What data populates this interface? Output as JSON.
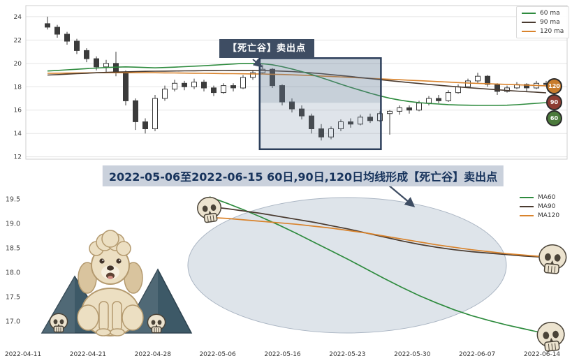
{
  "annotations": {
    "sell_point_label": "【死亡谷】卖出点",
    "banner": "2022-05-06至2022-06-15 60日,90日,120日均线形成【死亡谷】卖出点"
  },
  "colors": {
    "annotation": "#3e4d63",
    "banner_bg": "#cad1dc",
    "banner_text": "#17335c",
    "box_stroke": "#2c3e5a",
    "ellipse_fill": "#c3cdd9",
    "ellipse_stroke": "#aab5c3",
    "grid": "#e5e5e5",
    "up_candle": "#ffffff",
    "down_candle": "#3b3b3b",
    "skull_bone": "#ece3cf",
    "skull_dark": "#4a4338",
    "mountain": "#3d5967",
    "mountain_edge": "#2e4350",
    "dog_body": "#ecdfc2",
    "dog_shade": "#d9c49e",
    "dog_outline": "#b49a6f",
    "dog_dark": "#42342a",
    "dog_tongue": "#d08b80"
  },
  "chart_data": [
    {
      "type": "candlestick",
      "title": "",
      "ylim": [
        11.8,
        24.95
      ],
      "yticks": [
        12,
        14,
        16,
        18,
        20,
        22,
        24
      ],
      "xticklabels": [
        "2022-04-11",
        "2022-04-21",
        "2022-04-28",
        "2022-05-06",
        "2022-05-16",
        "2022-05-23",
        "2022-05-30",
        "2022-06-07",
        "2022-06-14"
      ],
      "candles": [
        [
          23.4,
          24.0,
          22.9,
          23.1
        ],
        [
          23.1,
          23.3,
          22.2,
          22.5
        ],
        [
          22.5,
          22.7,
          21.6,
          21.9
        ],
        [
          21.9,
          22.1,
          20.8,
          21.1
        ],
        [
          21.1,
          21.3,
          20.1,
          20.4
        ],
        [
          20.4,
          20.6,
          19.4,
          19.7
        ],
        [
          19.7,
          20.3,
          19.2,
          20.0
        ],
        [
          20.0,
          21.0,
          18.9,
          19.2
        ],
        [
          19.2,
          19.4,
          16.4,
          16.8
        ],
        [
          16.8,
          17.0,
          14.3,
          15.0
        ],
        [
          15.0,
          15.3,
          14.0,
          14.4
        ],
        [
          14.4,
          17.3,
          14.2,
          17.0
        ],
        [
          17.0,
          18.1,
          16.8,
          17.8
        ],
        [
          17.8,
          18.6,
          17.6,
          18.3
        ],
        [
          18.3,
          18.5,
          17.7,
          18.0
        ],
        [
          18.0,
          18.7,
          17.8,
          18.4
        ],
        [
          18.4,
          18.6,
          17.6,
          17.9
        ],
        [
          17.9,
          18.1,
          17.2,
          17.5
        ],
        [
          17.5,
          18.3,
          17.4,
          18.1
        ],
        [
          18.1,
          18.3,
          17.6,
          17.9
        ],
        [
          17.9,
          19.0,
          17.8,
          18.8
        ],
        [
          18.8,
          19.4,
          18.6,
          19.2
        ],
        [
          19.2,
          19.9,
          19.1,
          19.5
        ],
        [
          19.5,
          19.6,
          17.9,
          18.1
        ],
        [
          18.1,
          18.2,
          16.4,
          16.7
        ],
        [
          16.7,
          17.0,
          15.8,
          16.1
        ],
        [
          16.1,
          16.4,
          15.2,
          15.5
        ],
        [
          15.5,
          15.7,
          14.0,
          14.4
        ],
        [
          14.4,
          14.8,
          13.4,
          13.7
        ],
        [
          13.7,
          14.6,
          13.5,
          14.4
        ],
        [
          14.4,
          15.2,
          14.2,
          15.0
        ],
        [
          15.0,
          15.3,
          14.5,
          14.8
        ],
        [
          14.8,
          15.6,
          14.7,
          15.4
        ],
        [
          15.4,
          15.7,
          14.9,
          15.1
        ],
        [
          15.1,
          15.9,
          15.0,
          15.7
        ],
        [
          15.7,
          16.0,
          13.9,
          15.9
        ],
        [
          15.9,
          16.4,
          15.6,
          16.2
        ],
        [
          16.2,
          16.4,
          15.7,
          16.0
        ],
        [
          16.0,
          16.8,
          15.9,
          16.6
        ],
        [
          16.6,
          17.2,
          16.4,
          17.0
        ],
        [
          17.0,
          17.3,
          16.6,
          16.8
        ],
        [
          16.8,
          17.7,
          16.7,
          17.5
        ],
        [
          17.5,
          18.2,
          17.4,
          18.0
        ],
        [
          18.0,
          18.7,
          17.9,
          18.5
        ],
        [
          18.5,
          19.2,
          18.3,
          18.9
        ],
        [
          18.9,
          19.0,
          18.0,
          18.2
        ],
        [
          18.2,
          18.3,
          17.3,
          17.6
        ],
        [
          17.6,
          18.1,
          17.5,
          17.9
        ],
        [
          17.9,
          18.4,
          17.8,
          18.2
        ],
        [
          18.2,
          18.3,
          17.6,
          17.9
        ],
        [
          17.9,
          18.5,
          17.8,
          18.3
        ],
        [
          18.3,
          18.5,
          18.0,
          18.2
        ]
      ],
      "series": [
        {
          "name": "60 ma",
          "color": "#2e8b3e",
          "values": [
            19.35,
            19.4,
            19.45,
            19.5,
            19.55,
            19.6,
            19.65,
            19.68,
            19.7,
            19.68,
            19.65,
            19.62,
            19.65,
            19.68,
            19.72,
            19.76,
            19.8,
            19.85,
            19.9,
            19.95,
            20.0,
            20.0,
            19.97,
            19.88,
            19.72,
            19.52,
            19.3,
            19.05,
            18.78,
            18.5,
            18.22,
            17.95,
            17.7,
            17.45,
            17.22,
            17.02,
            16.86,
            16.74,
            16.64,
            16.57,
            16.52,
            16.47,
            16.44,
            16.42,
            16.4,
            16.4,
            16.4,
            16.42,
            16.46,
            16.52,
            16.58,
            16.64
          ]
        },
        {
          "name": "90 ma",
          "color": "#4a3b30",
          "values": [
            19.0,
            19.04,
            19.08,
            19.12,
            19.16,
            19.2,
            19.23,
            19.26,
            19.28,
            19.3,
            19.32,
            19.33,
            19.34,
            19.35,
            19.36,
            19.37,
            19.38,
            19.38,
            19.39,
            19.4,
            19.4,
            19.4,
            19.39,
            19.37,
            19.34,
            19.3,
            19.25,
            19.19,
            19.12,
            19.04,
            18.96,
            18.88,
            18.79,
            18.7,
            18.61,
            18.52,
            18.44,
            18.36,
            18.28,
            18.2,
            18.13,
            18.06,
            17.99,
            17.92,
            17.86,
            17.8,
            17.74,
            17.68,
            17.63,
            17.58,
            17.53,
            17.48
          ]
        },
        {
          "name": "120 ma",
          "color": "#d9832c",
          "values": [
            19.15,
            19.16,
            19.17,
            19.18,
            19.19,
            19.2,
            19.2,
            19.2,
            19.2,
            19.2,
            19.2,
            19.2,
            19.19,
            19.18,
            19.17,
            19.16,
            19.15,
            19.14,
            19.13,
            19.12,
            19.11,
            19.1,
            19.09,
            19.07,
            19.05,
            19.02,
            18.99,
            18.96,
            18.92,
            18.88,
            18.84,
            18.8,
            18.76,
            18.72,
            18.68,
            18.64,
            18.6,
            18.56,
            18.52,
            18.48,
            18.44,
            18.4,
            18.36,
            18.32,
            18.29,
            18.26,
            18.23,
            18.2,
            18.17,
            18.14,
            18.11,
            18.08
          ]
        }
      ],
      "highlight_box": {
        "idx_from": 21.7,
        "idx_to": 34.1,
        "y_from": 12.65,
        "y_to": 20.45
      },
      "end_badges": [
        {
          "label": "120",
          "color": "#c87c2c"
        },
        {
          "label": "90",
          "color": "#8d3c32"
        },
        {
          "label": "60",
          "color": "#4b7a3b"
        }
      ]
    },
    {
      "type": "line",
      "x_from": "2022-05-06",
      "x_to": "2022-06-15",
      "ylim": [
        16.55,
        19.78
      ],
      "yticks": [
        "17.0",
        "17.5",
        "18.0",
        "18.5",
        "19.0",
        "19.5"
      ],
      "series": [
        {
          "name": "MA60",
          "color": "#2e8b3e",
          "values": [
            19.55,
            19.42,
            19.28,
            19.13,
            18.97,
            18.8,
            18.62,
            18.44,
            18.26,
            18.07,
            17.88,
            17.7,
            17.53,
            17.38,
            17.24,
            17.12,
            17.02,
            16.93,
            16.85,
            16.77,
            16.7
          ]
        },
        {
          "name": "MA90",
          "color": "#4a3b30",
          "values": [
            19.35,
            19.31,
            19.26,
            19.21,
            19.15,
            19.09,
            19.03,
            18.96,
            18.89,
            18.81,
            18.73,
            18.65,
            18.58,
            18.52,
            18.47,
            18.43,
            18.4,
            18.37,
            18.34,
            18.32,
            18.3
          ]
        },
        {
          "name": "MA120",
          "color": "#d9832c",
          "values": [
            19.13,
            19.11,
            19.08,
            19.05,
            19.02,
            18.99,
            18.95,
            18.91,
            18.86,
            18.81,
            18.75,
            18.69,
            18.63,
            18.57,
            18.52,
            18.47,
            18.43,
            18.39,
            18.36,
            18.33,
            18.3
          ]
        }
      ],
      "legend_position": "right"
    }
  ]
}
